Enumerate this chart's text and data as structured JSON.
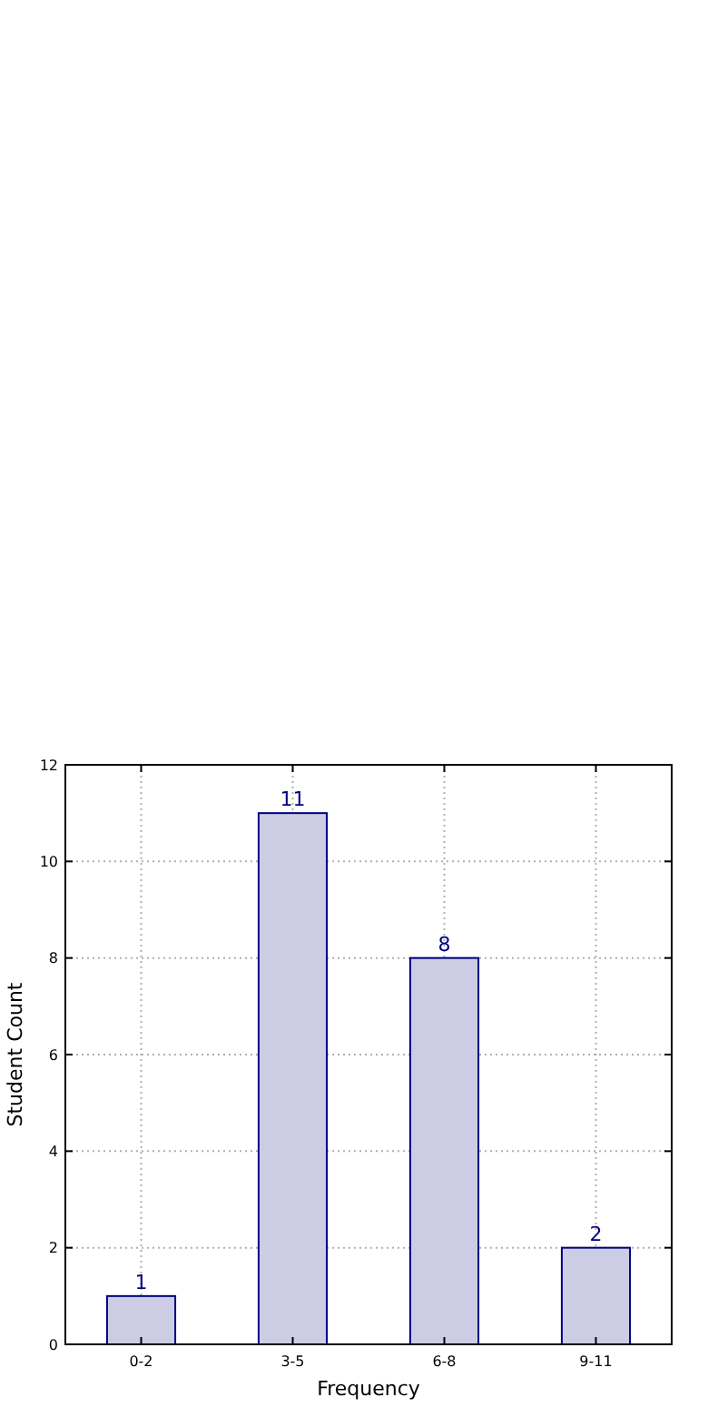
{
  "chart_data": {
    "type": "bar",
    "xlabel": "Frequency",
    "ylabel": "Student Count",
    "categories": [
      "0-2",
      "3-5",
      "6-8",
      "9-11"
    ],
    "values": [
      1,
      11,
      8,
      2
    ],
    "color": "#ccccE4",
    "ylim": [
      0,
      12
    ],
    "yticks": [
      0,
      2,
      4,
      6,
      8,
      10,
      12
    ],
    "grid": true,
    "data_labels": true
  }
}
